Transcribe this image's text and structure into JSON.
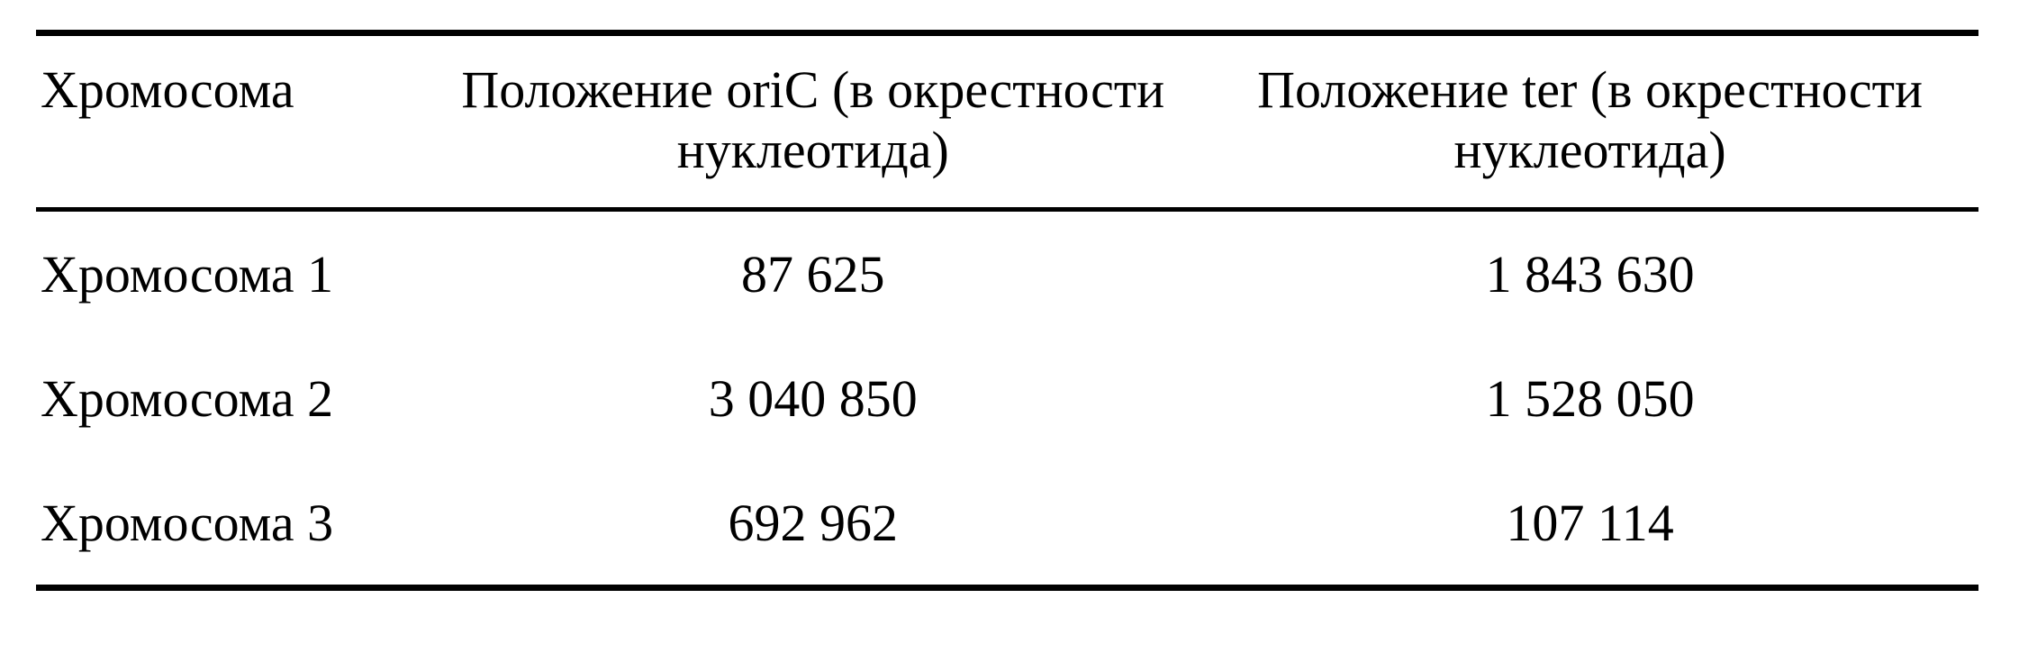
{
  "table": {
    "header": {
      "chromosome": "Хромосома",
      "oric": "Положение oriC (в окрестности нуклеотида)",
      "ter": "Положение ter (в окрестности нуклеотида)"
    },
    "rows": [
      {
        "name": "Хромосома 1",
        "oric": "87 625",
        "ter": "1 843 630"
      },
      {
        "name": "Хромосома 2",
        "oric": "3 040 850",
        "ter": "1 528 050"
      },
      {
        "name": "Хромосома 3",
        "oric": "692 962",
        "ter": "107 114"
      }
    ],
    "rule_color": "#000000",
    "text_color": "#000000",
    "background_color": "#ffffff"
  }
}
